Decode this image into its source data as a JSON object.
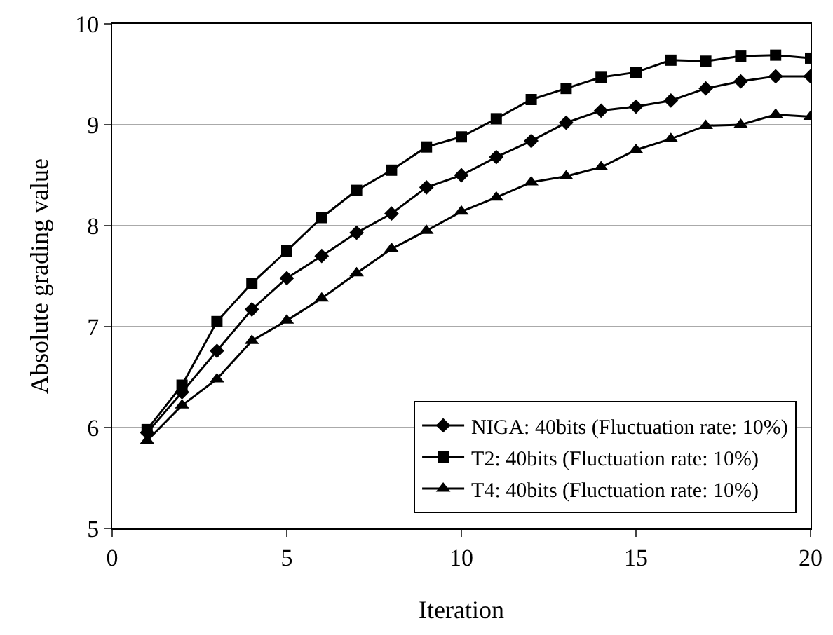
{
  "chart_data": {
    "type": "line",
    "xlabel": "Iteration",
    "ylabel": "Absolute grading value",
    "x": [
      1,
      2,
      3,
      4,
      5,
      6,
      7,
      8,
      9,
      10,
      11,
      12,
      13,
      14,
      15,
      16,
      17,
      18,
      19,
      20
    ],
    "series": [
      {
        "name": "NIGA: 40bits (Fluctuation rate: 10%)",
        "color": "#000000",
        "marker": "diamond",
        "values": [
          5.95,
          6.35,
          6.76,
          7.17,
          7.48,
          7.7,
          7.93,
          8.12,
          8.38,
          8.5,
          8.68,
          8.84,
          9.02,
          9.14,
          9.18,
          9.24,
          9.36,
          9.43,
          9.48,
          9.48
        ]
      },
      {
        "name": "T2: 40bits (Fluctuation rate: 10%)",
        "color": "#000000",
        "marker": "square",
        "values": [
          5.98,
          6.42,
          7.05,
          7.43,
          7.75,
          8.08,
          8.35,
          8.55,
          8.78,
          8.88,
          9.06,
          9.25,
          9.36,
          9.47,
          9.52,
          9.64,
          9.63,
          9.68,
          9.69,
          9.66
        ]
      },
      {
        "name": "T4: 40bits (Fluctuation rate: 10%)",
        "color": "#000000",
        "marker": "triangle",
        "values": [
          5.87,
          6.22,
          6.48,
          6.86,
          7.06,
          7.28,
          7.53,
          7.77,
          7.95,
          8.14,
          8.28,
          8.43,
          8.49,
          8.58,
          8.75,
          8.86,
          8.99,
          9.0,
          9.1,
          9.08
        ]
      }
    ],
    "xlim": [
      0,
      20
    ],
    "xticks": [
      0,
      5,
      10,
      15,
      20
    ],
    "ylim": [
      5,
      10
    ],
    "yticks": [
      5,
      6,
      7,
      8,
      9,
      10
    ],
    "grid": "y",
    "legend": "bottom right",
    "line_style": "solid"
  }
}
